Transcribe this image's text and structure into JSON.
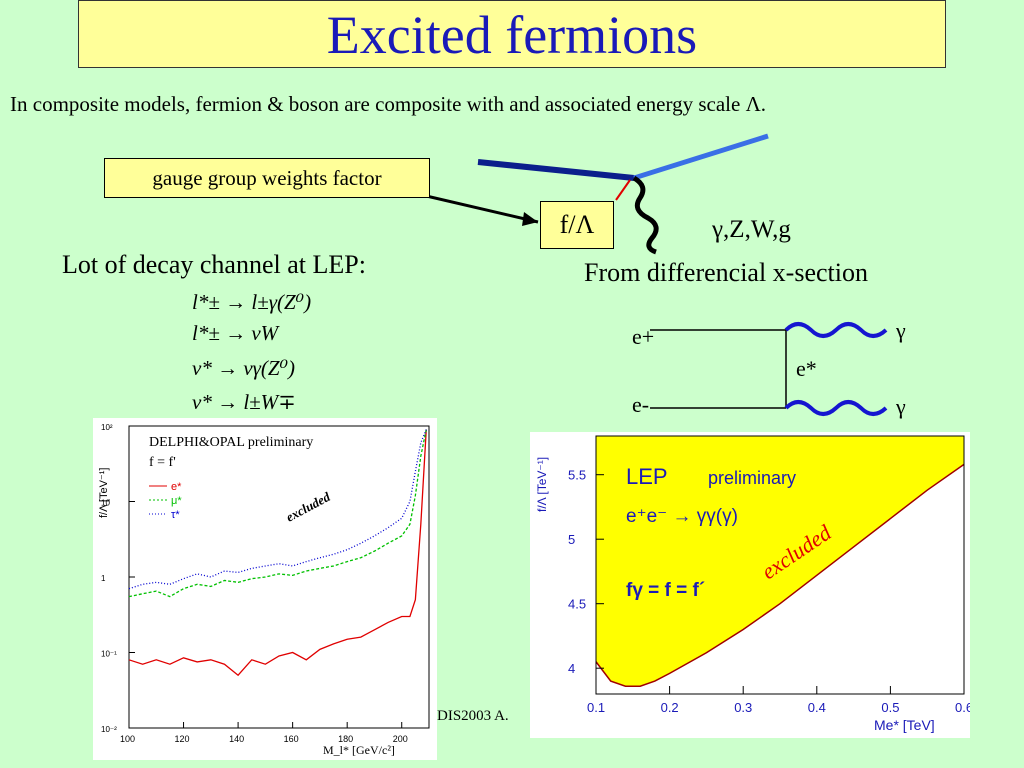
{
  "title": "Excited fermions",
  "intro": "In composite models, fermion & boson are composite with and associated energy scale Λ.",
  "diagram_top": {
    "gauge_label": "gauge group weights factor",
    "coupling_label": "f/Λ",
    "bosons_label": "γ,Z,W,g"
  },
  "left_section": {
    "heading": "Lot of decay channel at LEP:",
    "decays": [
      "l*± → l±γ(Z⁰)",
      "l*± → νW",
      "ν* → νγ(Z⁰)",
      "ν* → l±W∓"
    ]
  },
  "right_section": {
    "heading": "From differencial x-section",
    "feynman": {
      "in1": "e+",
      "in2": "e-",
      "exchange": "e*",
      "out1": "γ",
      "out2": "γ"
    }
  },
  "footer_fragment": "DIS2003 A.",
  "colors": {
    "title_bg": "#ffff99",
    "title_text": "#1a1ab8",
    "slide_bg": "#ccffcc",
    "excluded": "#ffff00"
  },
  "chart_data": [
    {
      "type": "line",
      "title": "DELPHI&OPAL preliminary",
      "subtitle": "f = f'",
      "xlabel": "M_l* [GeV/c²]",
      "ylabel": "f/Λ [TeV⁻¹]",
      "log_y": true,
      "xlim": [
        100,
        210
      ],
      "ylim": [
        0.01,
        100
      ],
      "x_ticks": [
        "100",
        "120",
        "140",
        "160",
        "180",
        "200"
      ],
      "y_ticks": [
        "10⁻²",
        "10⁻¹",
        "1",
        "10",
        "10²"
      ],
      "annotation": "excluded",
      "x": [
        100,
        105,
        110,
        115,
        120,
        125,
        130,
        135,
        140,
        145,
        150,
        155,
        160,
        165,
        170,
        175,
        180,
        185,
        190,
        195,
        200,
        203,
        205,
        207,
        209
      ],
      "series": [
        {
          "name": "e*",
          "color": "#e00000",
          "values": [
            0.08,
            0.07,
            0.08,
            0.07,
            0.085,
            0.075,
            0.08,
            0.07,
            0.05,
            0.08,
            0.07,
            0.09,
            0.1,
            0.08,
            0.11,
            0.13,
            0.15,
            0.16,
            0.2,
            0.25,
            0.3,
            0.3,
            0.5,
            5,
            90
          ]
        },
        {
          "name": "μ*",
          "color": "#00c000",
          "values": [
            0.55,
            0.6,
            0.65,
            0.55,
            0.7,
            0.8,
            0.75,
            0.9,
            0.85,
            0.95,
            1.0,
            1.1,
            1.05,
            1.2,
            1.3,
            1.4,
            1.6,
            1.8,
            2.2,
            2.8,
            3.5,
            5,
            12,
            40,
            90
          ]
        },
        {
          "name": "τ*",
          "color": "#0000d0",
          "values": [
            0.7,
            0.8,
            0.85,
            0.8,
            0.95,
            1.1,
            1.0,
            1.2,
            1.15,
            1.3,
            1.4,
            1.5,
            1.4,
            1.6,
            1.8,
            2.0,
            2.3,
            2.8,
            3.5,
            4.5,
            6,
            10,
            25,
            60,
            90
          ]
        }
      ]
    },
    {
      "type": "line",
      "title": "LEP",
      "subtitle": "preliminary",
      "process": "e⁺e⁻ → γγ(γ)",
      "condition": "fγ = f = f´",
      "xlabel": "Me* [TeV]",
      "ylabel": "f/Λ [TeV⁻¹]",
      "xlim": [
        0.1,
        0.6
      ],
      "ylim": [
        3.8,
        5.8
      ],
      "x_ticks": [
        "0.1",
        "0.2",
        "0.3",
        "0.4",
        "0.5",
        "0.6"
      ],
      "y_ticks": [
        "4",
        "4.5",
        "5",
        "5.5"
      ],
      "annotation": "excluded",
      "series": [
        {
          "name": "limit",
          "color": "#a00000",
          "x": [
            0.1,
            0.12,
            0.14,
            0.16,
            0.18,
            0.2,
            0.25,
            0.3,
            0.35,
            0.4,
            0.45,
            0.5,
            0.55,
            0.6
          ],
          "values": [
            4.05,
            3.9,
            3.86,
            3.86,
            3.9,
            3.96,
            4.12,
            4.3,
            4.5,
            4.72,
            4.94,
            5.16,
            5.38,
            5.58
          ]
        }
      ]
    }
  ]
}
